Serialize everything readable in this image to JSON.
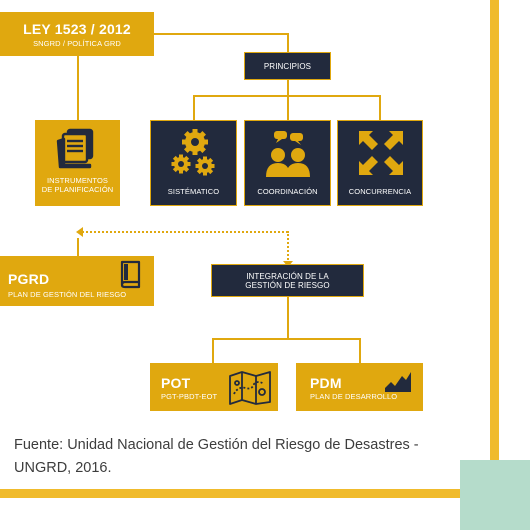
{
  "ley": {
    "title": "LEY 1523 / 2012",
    "subtitle": "SNGRD / POLÍTICA GRD"
  },
  "principios": {
    "label": "PRINCIPIOS"
  },
  "instrumentos": {
    "label_line1": "INSTRUMENTOS",
    "label_line2": "DE PLANIFICACIÓN"
  },
  "principles": [
    {
      "label": "SISTÉMATICO",
      "icon": "gears-icon"
    },
    {
      "label": "COORDINACIÓN",
      "icon": "people-talking-icon"
    },
    {
      "label": "CONCURRENCIA",
      "icon": "converging-arrows-icon"
    }
  ],
  "pgrd": {
    "title": "PGRD",
    "subtitle": "PLAN DE GESTIÓN DEL RIESGO",
    "icon": "book-icon"
  },
  "integracion": {
    "label_line1": "INTEGRACIÓN DE LA",
    "label_line2": "GESTIÓN DE RIESGO"
  },
  "pot": {
    "title": "POT",
    "subtitle": "PGT-PBDT-EOT",
    "icon": "map-icon"
  },
  "pdm": {
    "title": "PDM",
    "subtitle": "PLAN DE DESARROLLO",
    "icon": "chart-icon"
  },
  "caption": "Fuente: Unidad Nacional de Gestión del Riesgo de Desastres - UNGRD, 2016.",
  "colors": {
    "gold": "#e0a80f",
    "navy": "#222a3d",
    "accent_bar": "#f0bb2c",
    "mint": "#b5dccb"
  }
}
